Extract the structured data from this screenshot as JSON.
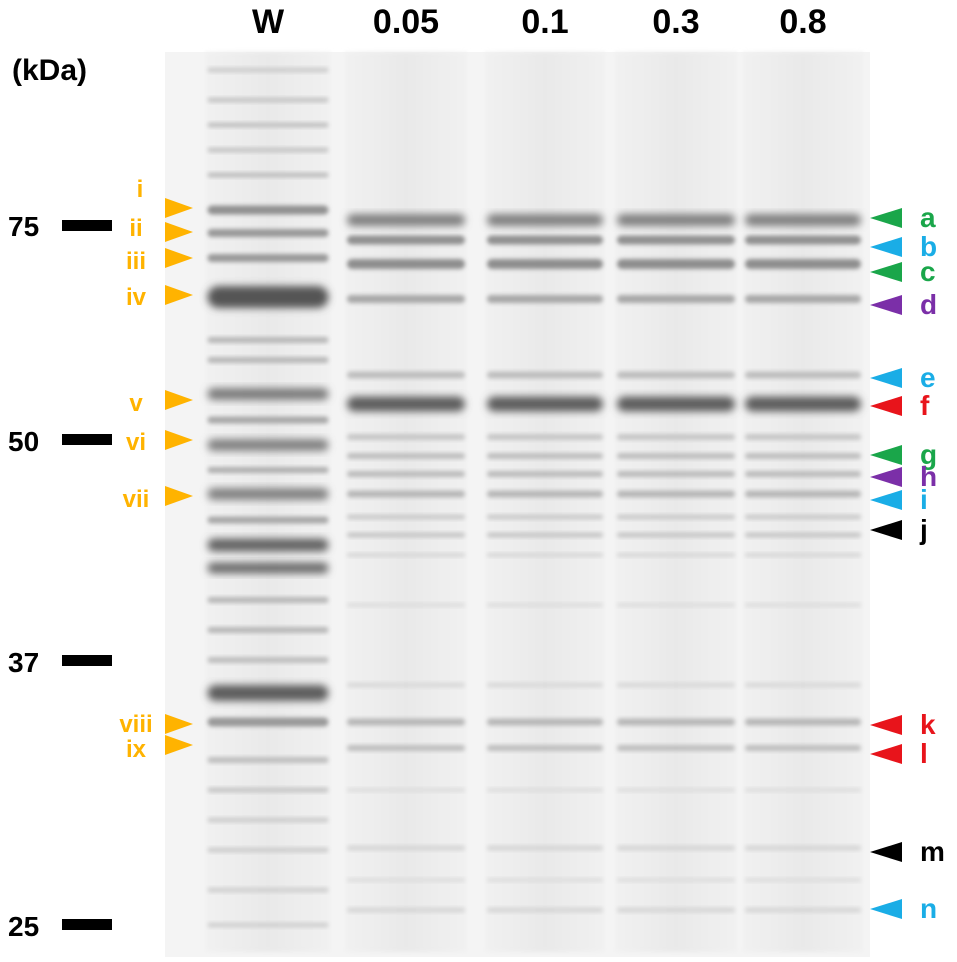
{
  "unit_label": "(kDa)",
  "lanes": [
    {
      "label": "W"
    },
    {
      "label": "0.05"
    },
    {
      "label": "0.1"
    },
    {
      "label": "0.3"
    },
    {
      "label": "0.8"
    }
  ],
  "markers": [
    {
      "label": "75"
    },
    {
      "label": "50"
    },
    {
      "label": "37"
    },
    {
      "label": "25"
    }
  ],
  "left_annotations": {
    "color": "#FFB300",
    "items": [
      "i",
      "ii",
      "iii",
      "iv",
      "v",
      "vi",
      "vii",
      "viii",
      "ix"
    ]
  },
  "right_annotations": [
    {
      "label": "a",
      "color": "#1AA64A"
    },
    {
      "label": "b",
      "color": "#1AADE6"
    },
    {
      "label": "c",
      "color": "#1AA64A"
    },
    {
      "label": "d",
      "color": "#7B2FA8"
    },
    {
      "label": "e",
      "color": "#1AADE6"
    },
    {
      "label": "f",
      "color": "#E8141B"
    },
    {
      "label": "g",
      "color": "#1AA64A"
    },
    {
      "label": "h",
      "color": "#7B2FA8"
    },
    {
      "label": "i",
      "color": "#1AADE6"
    },
    {
      "label": "j",
      "color": "#000000"
    },
    {
      "label": "k",
      "color": "#E8141B"
    },
    {
      "label": "l",
      "color": "#E8141B"
    },
    {
      "label": "m",
      "color": "#000000"
    },
    {
      "label": "n",
      "color": "#1AADE6"
    }
  ]
}
